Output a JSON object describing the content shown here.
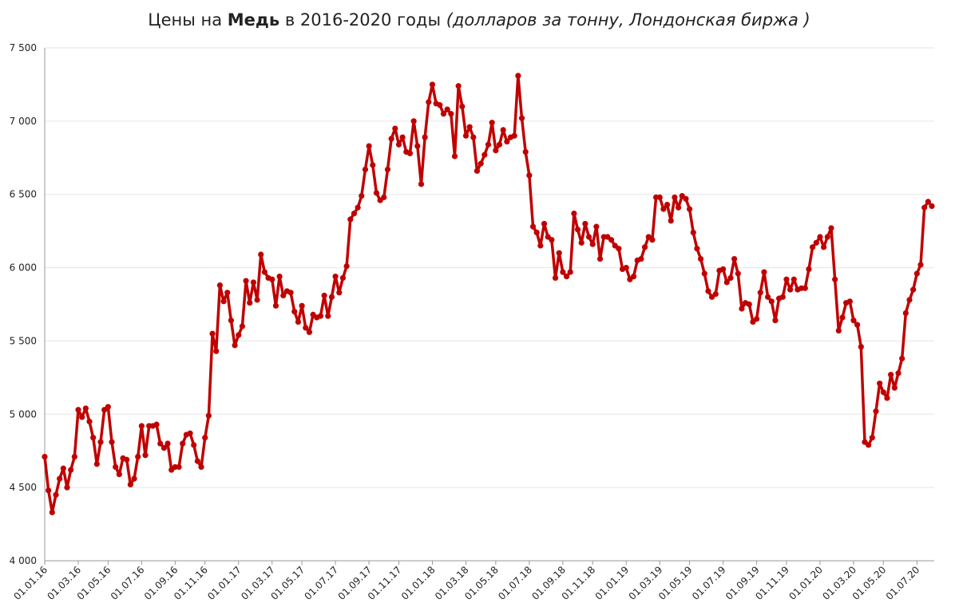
{
  "chart_data": {
    "type": "line",
    "title_parts": [
      "Цены на ",
      "Медь",
      " в 2016-2020 годы ",
      "(долларов за тонну, Лондонская биржа )"
    ],
    "categories": [
      "01.01.16",
      null,
      null,
      null,
      null,
      null,
      null,
      null,
      null,
      "01.03.16",
      null,
      null,
      null,
      null,
      null,
      null,
      null,
      "01.05.16",
      null,
      null,
      null,
      null,
      null,
      null,
      null,
      null,
      "01.07.16",
      null,
      null,
      null,
      null,
      null,
      null,
      null,
      null,
      "01.09.16",
      null,
      null,
      null,
      null,
      null,
      null,
      null,
      "01.11.16",
      null,
      null,
      null,
      null,
      null,
      null,
      null,
      null,
      "01.01.17",
      null,
      null,
      null,
      null,
      null,
      null,
      null,
      null,
      "01.03.17",
      null,
      null,
      null,
      null,
      null,
      null,
      null,
      "01.05.17",
      null,
      null,
      null,
      null,
      null,
      null,
      null,
      null,
      "01.07.17",
      null,
      null,
      null,
      null,
      null,
      null,
      null,
      null,
      "01.09.17",
      null,
      null,
      null,
      null,
      null,
      null,
      null,
      "01.11.17",
      null,
      null,
      null,
      null,
      null,
      null,
      null,
      null,
      "01.01.18",
      null,
      null,
      null,
      null,
      null,
      null,
      null,
      null,
      "01.03.18",
      null,
      null,
      null,
      null,
      null,
      null,
      null,
      "01.05.18",
      null,
      null,
      null,
      null,
      null,
      null,
      null,
      null,
      "01.07.18",
      null,
      null,
      null,
      null,
      null,
      null,
      null,
      null,
      "01.09.18",
      null,
      null,
      null,
      null,
      null,
      null,
      null,
      "01.11.18",
      null,
      null,
      null,
      null,
      null,
      null,
      null,
      null,
      "01.01.19",
      null,
      null,
      null,
      null,
      null,
      null,
      null,
      null,
      "01.03.19",
      null,
      null,
      null,
      null,
      null,
      null,
      null,
      "01.05.19",
      null,
      null,
      null,
      null,
      null,
      null,
      null,
      null,
      "01.07.19",
      null,
      null,
      null,
      null,
      null,
      null,
      null,
      null,
      "01.09.19",
      null,
      null,
      null,
      null,
      null,
      null,
      null,
      "01.11.19",
      null,
      null,
      null,
      null,
      null,
      null,
      null,
      null,
      "01.01.20",
      null,
      null,
      null,
      null,
      null,
      null,
      null,
      null,
      "01.03.20",
      null,
      null,
      null,
      null,
      null,
      null,
      null,
      "01.05.20",
      null,
      null,
      null,
      null,
      null,
      null,
      null,
      null,
      "01.07.20",
      null,
      null,
      null,
      null
    ],
    "values": [
      4710,
      4480,
      4330,
      4450,
      4560,
      4630,
      4500,
      4620,
      4710,
      5030,
      4980,
      5040,
      4950,
      4840,
      4660,
      4810,
      5030,
      5050,
      4810,
      4640,
      4590,
      4700,
      4690,
      4520,
      4560,
      4710,
      4920,
      4720,
      4920,
      4920,
      4930,
      4800,
      4770,
      4800,
      4620,
      4640,
      4640,
      4800,
      4860,
      4870,
      4790,
      4680,
      4640,
      4840,
      4990,
      5550,
      5430,
      5880,
      5770,
      5830,
      5640,
      5470,
      5540,
      5600,
      5910,
      5760,
      5900,
      5780,
      6090,
      5970,
      5930,
      5920,
      5740,
      5940,
      5810,
      5840,
      5830,
      5700,
      5630,
      5740,
      5590,
      5560,
      5680,
      5660,
      5670,
      5810,
      5670,
      5800,
      5940,
      5830,
      5930,
      6010,
      6330,
      6370,
      6410,
      6490,
      6670,
      6830,
      6700,
      6510,
      6460,
      6480,
      6670,
      6880,
      6950,
      6840,
      6890,
      6790,
      6780,
      7000,
      6830,
      6570,
      6890,
      7130,
      7250,
      7120,
      7110,
      7050,
      7080,
      7050,
      6760,
      7240,
      7100,
      6900,
      6960,
      6890,
      6660,
      6710,
      6770,
      6840,
      6990,
      6800,
      6840,
      6940,
      6860,
      6890,
      6900,
      7310,
      7020,
      6790,
      6630,
      6280,
      6240,
      6150,
      6300,
      6210,
      6190,
      5930,
      6100,
      5970,
      5940,
      5970,
      6370,
      6260,
      6170,
      6300,
      6210,
      6160,
      6280,
      6060,
      6210,
      6210,
      6190,
      6150,
      6130,
      5990,
      6000,
      5920,
      5940,
      6050,
      6060,
      6140,
      6210,
      6190,
      6480,
      6480,
      6400,
      6430,
      6320,
      6480,
      6410,
      6490,
      6470,
      6400,
      6240,
      6130,
      6060,
      5960,
      5840,
      5800,
      5820,
      5980,
      5990,
      5900,
      5930,
      6060,
      5960,
      5720,
      5760,
      5750,
      5630,
      5650,
      5830,
      5970,
      5800,
      5770,
      5640,
      5790,
      5800,
      5920,
      5850,
      5920,
      5850,
      5860,
      5860,
      5990,
      6140,
      6170,
      6210,
      6140,
      6210,
      6270,
      5920,
      5570,
      5660,
      5760,
      5770,
      5640,
      5610,
      5460,
      4810,
      4790,
      4840,
      5020,
      5210,
      5150,
      5110,
      5270,
      5180,
      5280,
      5380,
      5690,
      5780,
      5850,
      5960,
      6020,
      6410,
      6450,
      6420
    ],
    "color": "#c00000",
    "ylim": [
      4000,
      7500
    ],
    "yticks": [
      {
        "value": 4000,
        "label": "4 000"
      },
      {
        "value": 4500,
        "label": "4 500"
      },
      {
        "value": 5000,
        "label": "5 000"
      },
      {
        "value": 5500,
        "label": "5 500"
      },
      {
        "value": 6000,
        "label": "6 000"
      },
      {
        "value": 6500,
        "label": "6 500"
      },
      {
        "value": 7000,
        "label": "7 000"
      },
      {
        "value": 7500,
        "label": "7 500"
      }
    ],
    "grid": true
  }
}
